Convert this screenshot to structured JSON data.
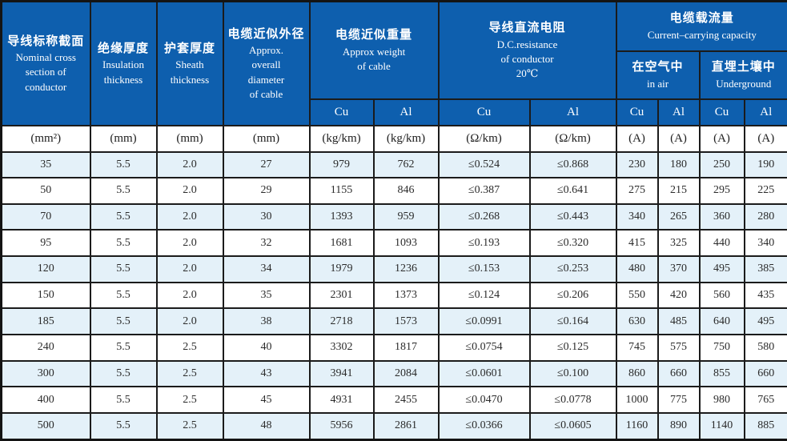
{
  "header": {
    "cols": [
      {
        "zh": "导线标称截面",
        "en": "Nominal cross\nsection of\nconductor"
      },
      {
        "zh": "绝缘厚度",
        "en": "Insulation\nthickness"
      },
      {
        "zh": "护套厚度",
        "en": "Sheath\nthickness"
      },
      {
        "zh": "电缆近似外径",
        "en": "Approx.\noverall\ndiameter\nof cable"
      }
    ],
    "weight_group": {
      "zh": "电缆近似重量",
      "en": "Approx weight\nof cable"
    },
    "resistance_group": {
      "zh": "导线直流电阻",
      "en": "D.C.resistance\nof conductor\n20℃"
    },
    "capacity_group": {
      "zh": "电缆载流量",
      "en": "Current–carrying capacity"
    },
    "air": {
      "zh": "在空气中",
      "en": "in air"
    },
    "underground": {
      "zh": "直埋土壤中",
      "en": "Underground"
    },
    "metal_labels": [
      "Cu",
      "Al",
      "Cu",
      "Al",
      "Cu",
      "Al",
      "Cu",
      "Al"
    ]
  },
  "units": [
    "(mm²)",
    "(mm)",
    "(mm)",
    "(mm)",
    "(kg/km)",
    "(kg/km)",
    "(Ω/km)",
    "(Ω/km)",
    "(A)",
    "(A)",
    "(A)",
    "(A)"
  ],
  "rows": [
    [
      "35",
      "5.5",
      "2.0",
      "27",
      "979",
      "762",
      "≤0.524",
      "≤0.868",
      "230",
      "180",
      "250",
      "190"
    ],
    [
      "50",
      "5.5",
      "2.0",
      "29",
      "1155",
      "846",
      "≤0.387",
      "≤0.641",
      "275",
      "215",
      "295",
      "225"
    ],
    [
      "70",
      "5.5",
      "2.0",
      "30",
      "1393",
      "959",
      "≤0.268",
      "≤0.443",
      "340",
      "265",
      "360",
      "280"
    ],
    [
      "95",
      "5.5",
      "2.0",
      "32",
      "1681",
      "1093",
      "≤0.193",
      "≤0.320",
      "415",
      "325",
      "440",
      "340"
    ],
    [
      "120",
      "5.5",
      "2.0",
      "34",
      "1979",
      "1236",
      "≤0.153",
      "≤0.253",
      "480",
      "370",
      "495",
      "385"
    ],
    [
      "150",
      "5.5",
      "2.0",
      "35",
      "2301",
      "1373",
      "≤0.124",
      "≤0.206",
      "550",
      "420",
      "560",
      "435"
    ],
    [
      "185",
      "5.5",
      "2.0",
      "38",
      "2718",
      "1573",
      "≤0.0991",
      "≤0.164",
      "630",
      "485",
      "640",
      "495"
    ],
    [
      "240",
      "5.5",
      "2.5",
      "40",
      "3302",
      "1817",
      "≤0.0754",
      "≤0.125",
      "745",
      "575",
      "750",
      "580"
    ],
    [
      "300",
      "5.5",
      "2.5",
      "43",
      "3941",
      "2084",
      "≤0.0601",
      "≤0.100",
      "860",
      "660",
      "855",
      "660"
    ],
    [
      "400",
      "5.5",
      "2.5",
      "45",
      "4931",
      "2455",
      "≤0.0470",
      "≤0.0778",
      "1000",
      "775",
      "980",
      "765"
    ],
    [
      "500",
      "5.5",
      "2.5",
      "48",
      "5956",
      "2861",
      "≤0.0366",
      "≤0.0605",
      "1160",
      "890",
      "1140",
      "885"
    ]
  ],
  "colors": {
    "header_blue": "#0e5fae",
    "row_alt_blue": "#e4f1f9",
    "border": "#1b1b1b",
    "header_text": "#ffffff",
    "data_text": "#2b2b2b"
  }
}
